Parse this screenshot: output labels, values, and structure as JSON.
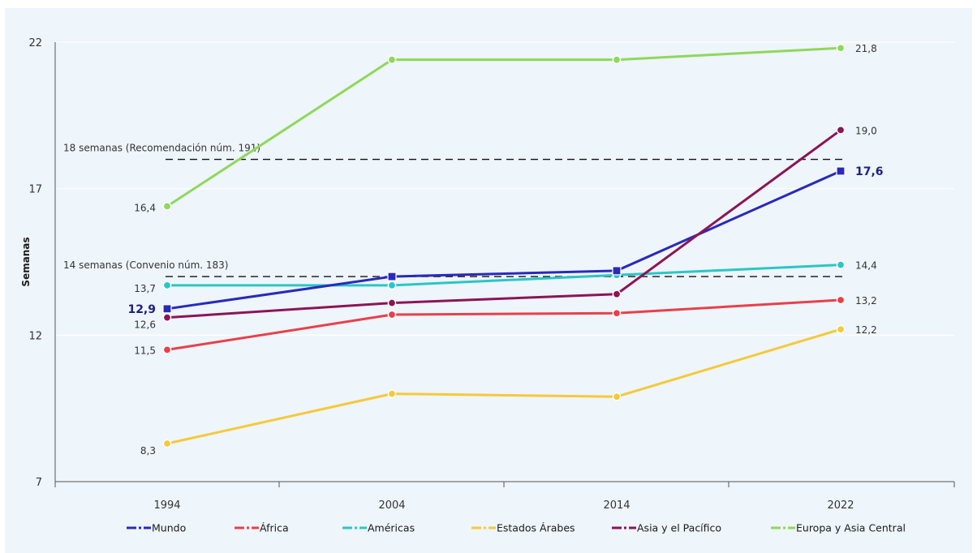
{
  "chart_data": {
    "type": "line",
    "ylabel": "Semanas",
    "ylim": [
      7,
      22
    ],
    "yticks": [
      7,
      12,
      17,
      22
    ],
    "x": [
      "1994",
      "2004",
      "2014",
      "2022"
    ],
    "series": [
      {
        "name": "Mundo",
        "color": "#2a2ab8",
        "marker": "square",
        "values": [
          12.9,
          14.0,
          14.2,
          17.6
        ],
        "labels": {
          "start": "12,9",
          "end": "17,6"
        },
        "emphasis": true
      },
      {
        "name": "África",
        "color": "#e8404a",
        "marker": "circle",
        "values": [
          11.5,
          12.7,
          12.75,
          13.2
        ],
        "labels": {
          "start": "11,5",
          "end": "13,2"
        }
      },
      {
        "name": "Américas",
        "color": "#2bc6c6",
        "marker": "circle",
        "values": [
          13.7,
          13.7,
          14.05,
          14.4
        ],
        "labels": {
          "start": "13,7",
          "end": "14,4"
        }
      },
      {
        "name": "Estados Árabes",
        "color": "#f5c93a",
        "marker": "circle",
        "values": [
          8.3,
          10.0,
          9.9,
          12.2
        ],
        "labels": {
          "start": "8,3",
          "end": "12,2"
        }
      },
      {
        "name": "Asia y el Pacífico",
        "color": "#8b1556",
        "marker": "circle",
        "values": [
          12.6,
          13.1,
          13.4,
          19.0
        ],
        "labels": {
          "start": "12,6",
          "end": "19,0"
        }
      },
      {
        "name": "Europa y Asia Central",
        "color": "#8fd85a",
        "marker": "circle",
        "values": [
          16.4,
          21.4,
          21.4,
          21.8
        ],
        "labels": {
          "start": "16,4",
          "end": "21,8"
        }
      }
    ],
    "reference_lines": [
      {
        "value": 18,
        "label": "18 semanas (Recomendación núm. 191)"
      },
      {
        "value": 14,
        "label": "14 semanas (Convenio núm. 183)"
      }
    ],
    "legend_position": "bottom",
    "grid": "horizontal"
  }
}
